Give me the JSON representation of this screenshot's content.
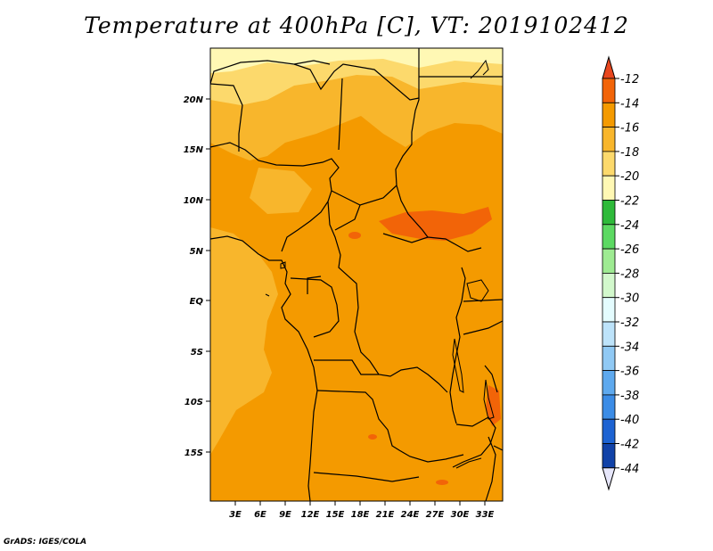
{
  "title": "Temperature at 400hPa [C], VT: 2019102412",
  "credit": "GrADS: IGES/COLA",
  "map": {
    "lon_labels": [
      "3E",
      "6E",
      "9E",
      "12E",
      "15E",
      "18E",
      "21E",
      "24E",
      "27E",
      "30E",
      "33E"
    ],
    "lat_labels": [
      "20N",
      "15N",
      "10N",
      "5N",
      "EQ",
      "5S",
      "10S",
      "15S"
    ]
  },
  "colorbar": {
    "labels": [
      "-12",
      "-14",
      "-16",
      "-18",
      "-20",
      "-22",
      "-24",
      "-26",
      "-28",
      "-30",
      "-32",
      "-34",
      "-36",
      "-38",
      "-40",
      "-42",
      "-44"
    ],
    "colors": [
      "#e8461e",
      "#f26408",
      "#f49a00",
      "#f8b62c",
      "#fcd96c",
      "#fff8b4",
      "#2eba3a",
      "#5cd962",
      "#9eeb92",
      "#d2f8cc",
      "#e4fcfe",
      "#bde3fa",
      "#90c9f4",
      "#5ea9ee",
      "#3b8ce6",
      "#1d63d2",
      "#1142a8",
      "#0a1470",
      "#e6e6fa"
    ]
  }
}
